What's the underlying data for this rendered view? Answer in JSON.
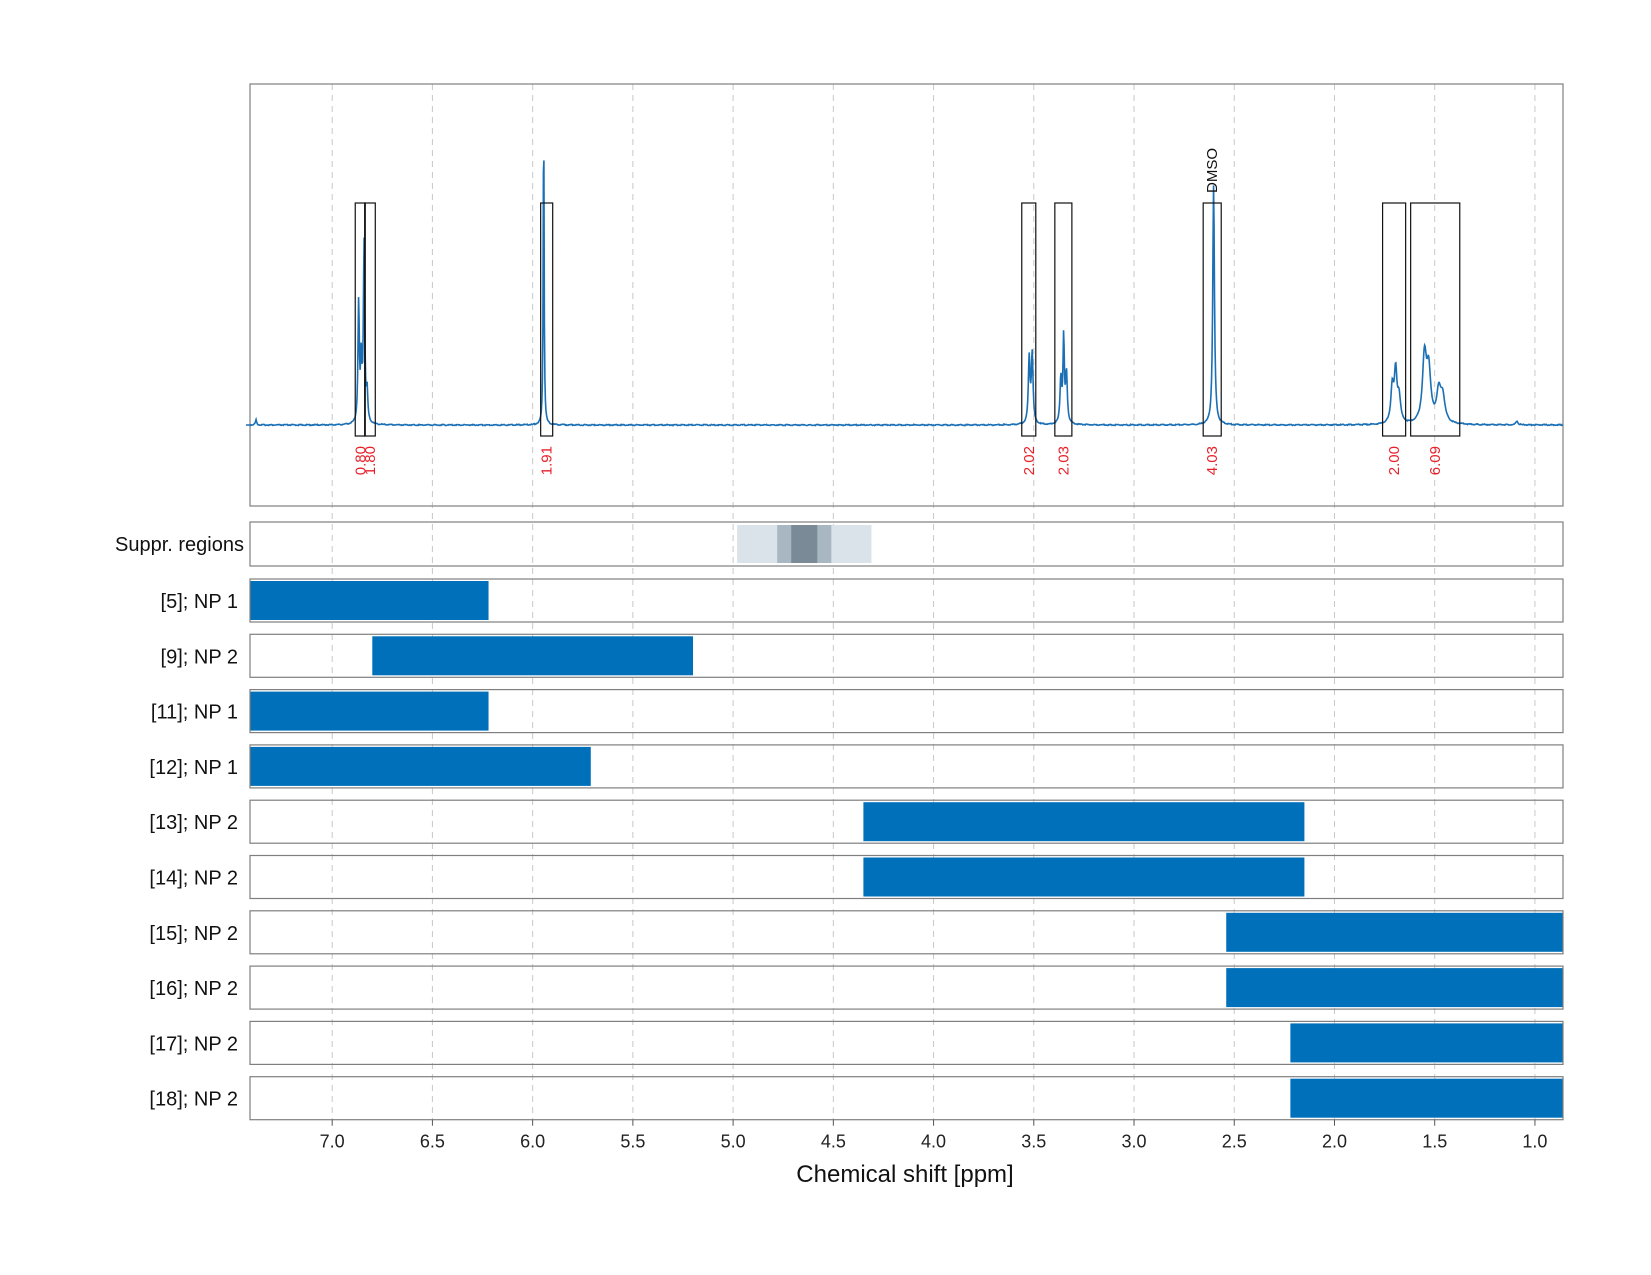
{
  "chart_data": {
    "type": "line",
    "xlabel": "Chemical shift [ppm]",
    "xlim": [
      7.41,
      0.86
    ],
    "x_reversed": true,
    "grid": true,
    "x_ticks": [
      "7.0",
      "6.5",
      "6.0",
      "5.5",
      "5.0",
      "4.5",
      "4.0",
      "3.5",
      "3.0",
      "2.5",
      "2.0",
      "1.5",
      "1.0"
    ],
    "spectrum": {
      "color": "#1a6fb5",
      "peaks": [
        {
          "center": 6.868,
          "height": 0.24,
          "width": 0.004
        },
        {
          "center": 6.855,
          "height": 0.12,
          "width": 0.004
        },
        {
          "center": 6.841,
          "height": 0.36,
          "width": 0.004
        },
        {
          "center": 6.826,
          "height": 0.06,
          "width": 0.004
        },
        {
          "center": 5.945,
          "height": 0.65,
          "width": 0.0025
        },
        {
          "center": 3.523,
          "height": 0.13,
          "width": 0.005
        },
        {
          "center": 3.508,
          "height": 0.14,
          "width": 0.005
        },
        {
          "center": 3.365,
          "height": 0.09,
          "width": 0.005
        },
        {
          "center": 3.351,
          "height": 0.17,
          "width": 0.004
        },
        {
          "center": 3.337,
          "height": 0.1,
          "width": 0.005
        },
        {
          "center": 2.603,
          "height": 0.48,
          "width": 0.005
        },
        {
          "center": 1.712,
          "height": 0.07,
          "width": 0.008
        },
        {
          "center": 1.695,
          "height": 0.1,
          "width": 0.008
        },
        {
          "center": 1.678,
          "height": 0.05,
          "width": 0.009
        },
        {
          "center": 1.551,
          "height": 0.13,
          "width": 0.012
        },
        {
          "center": 1.53,
          "height": 0.1,
          "width": 0.012
        },
        {
          "center": 1.48,
          "height": 0.06,
          "width": 0.013
        },
        {
          "center": 1.46,
          "height": 0.05,
          "width": 0.013
        },
        {
          "center": 7.38,
          "height": 0.01,
          "width": 0.004
        },
        {
          "center": 1.09,
          "height": 0.008,
          "width": 0.006
        }
      ],
      "integration_regions": [
        {
          "start": 6.885,
          "end": 6.835,
          "label": "0.80"
        },
        {
          "start": 6.838,
          "end": 6.785,
          "label": "1.80"
        },
        {
          "start": 5.96,
          "end": 5.9,
          "label": "1.91"
        },
        {
          "start": 3.56,
          "end": 3.49,
          "label": "2.02"
        },
        {
          "start": 3.395,
          "end": 3.31,
          "label": "2.03"
        },
        {
          "start": 2.655,
          "end": 2.565,
          "label": "4.03"
        },
        {
          "start": 1.76,
          "end": 1.645,
          "label": "2.00"
        },
        {
          "start": 1.62,
          "end": 1.375,
          "label": "6.09"
        }
      ],
      "annotations": [
        {
          "x": 2.61,
          "label": "DMSO"
        }
      ]
    },
    "suppression_regions": {
      "label": "Suppr. regions",
      "bands": [
        {
          "start": 4.98,
          "end": 4.31,
          "color": "#dbe3ea"
        },
        {
          "start": 4.78,
          "end": 4.51,
          "color": "#a9b7c2"
        },
        {
          "start": 4.71,
          "end": 4.58,
          "color": "#7a8b97"
        }
      ]
    },
    "range_series": [
      {
        "label": "[5]; NP 1",
        "start": 7.41,
        "end": 6.22
      },
      {
        "label": "[9]; NP 2",
        "start": 6.8,
        "end": 5.2
      },
      {
        "label": "[11]; NP 1",
        "start": 7.41,
        "end": 6.22
      },
      {
        "label": "[12]; NP 1",
        "start": 7.41,
        "end": 5.71
      },
      {
        "label": "[13]; NP 2",
        "start": 4.35,
        "end": 2.15
      },
      {
        "label": "[14]; NP 2",
        "start": 4.35,
        "end": 2.15
      },
      {
        "label": "[15]; NP 2",
        "start": 2.54,
        "end": 0.86
      },
      {
        "label": "[16]; NP 2",
        "start": 2.54,
        "end": 0.86
      },
      {
        "label": "[17]; NP 2",
        "start": 2.22,
        "end": 0.86
      },
      {
        "label": "[18]; NP 2",
        "start": 2.22,
        "end": 0.86
      }
    ],
    "range_color": "#0070ba"
  }
}
